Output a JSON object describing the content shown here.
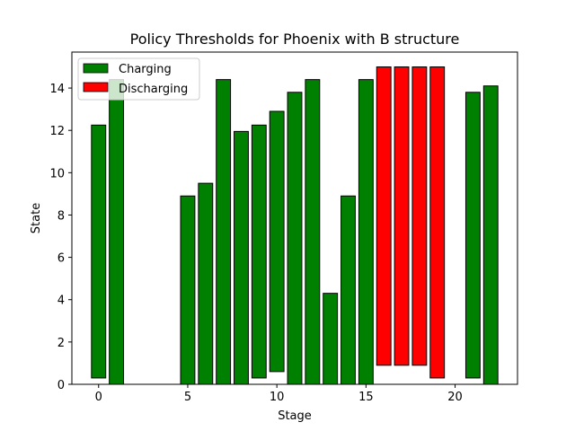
{
  "chart_data": {
    "type": "bar",
    "title": "Policy Thresholds for Phoenix with B structure",
    "xlabel": "Stage",
    "ylabel": "State",
    "xlim": [
      -1.5,
      23.5
    ],
    "ylim": [
      0,
      15.7
    ],
    "xticks": [
      0,
      5,
      10,
      15,
      20
    ],
    "yticks": [
      0,
      2,
      4,
      6,
      8,
      10,
      12,
      14
    ],
    "legend_position": "upper-left",
    "grid": false,
    "series": [
      {
        "name": "Charging",
        "color": "#008000",
        "bars": [
          {
            "x": 0,
            "bottom": 0.3,
            "top": 12.25
          },
          {
            "x": 1,
            "bottom": 0,
            "top": 14.4
          },
          {
            "x": 5,
            "bottom": 0,
            "top": 8.9
          },
          {
            "x": 6,
            "bottom": 0,
            "top": 9.5
          },
          {
            "x": 7,
            "bottom": 0,
            "top": 14.4
          },
          {
            "x": 8,
            "bottom": 0,
            "top": 11.95
          },
          {
            "x": 9,
            "bottom": 0.3,
            "top": 12.25
          },
          {
            "x": 10,
            "bottom": 0.6,
            "top": 12.9
          },
          {
            "x": 11,
            "bottom": 0,
            "top": 13.8
          },
          {
            "x": 12,
            "bottom": 0,
            "top": 14.4
          },
          {
            "x": 13,
            "bottom": 0,
            "top": 4.3
          },
          {
            "x": 14,
            "bottom": 0,
            "top": 8.9
          },
          {
            "x": 15,
            "bottom": 0,
            "top": 14.4
          },
          {
            "x": 21,
            "bottom": 0.3,
            "top": 13.8
          },
          {
            "x": 22,
            "bottom": 0,
            "top": 14.1
          }
        ]
      },
      {
        "name": "Discharging",
        "color": "#ff0000",
        "bars": [
          {
            "x": 16,
            "bottom": 0.9,
            "top": 15.0
          },
          {
            "x": 17,
            "bottom": 0.9,
            "top": 15.0
          },
          {
            "x": 18,
            "bottom": 0.9,
            "top": 15.0
          },
          {
            "x": 19,
            "bottom": 0.3,
            "top": 15.0
          }
        ]
      }
    ]
  }
}
